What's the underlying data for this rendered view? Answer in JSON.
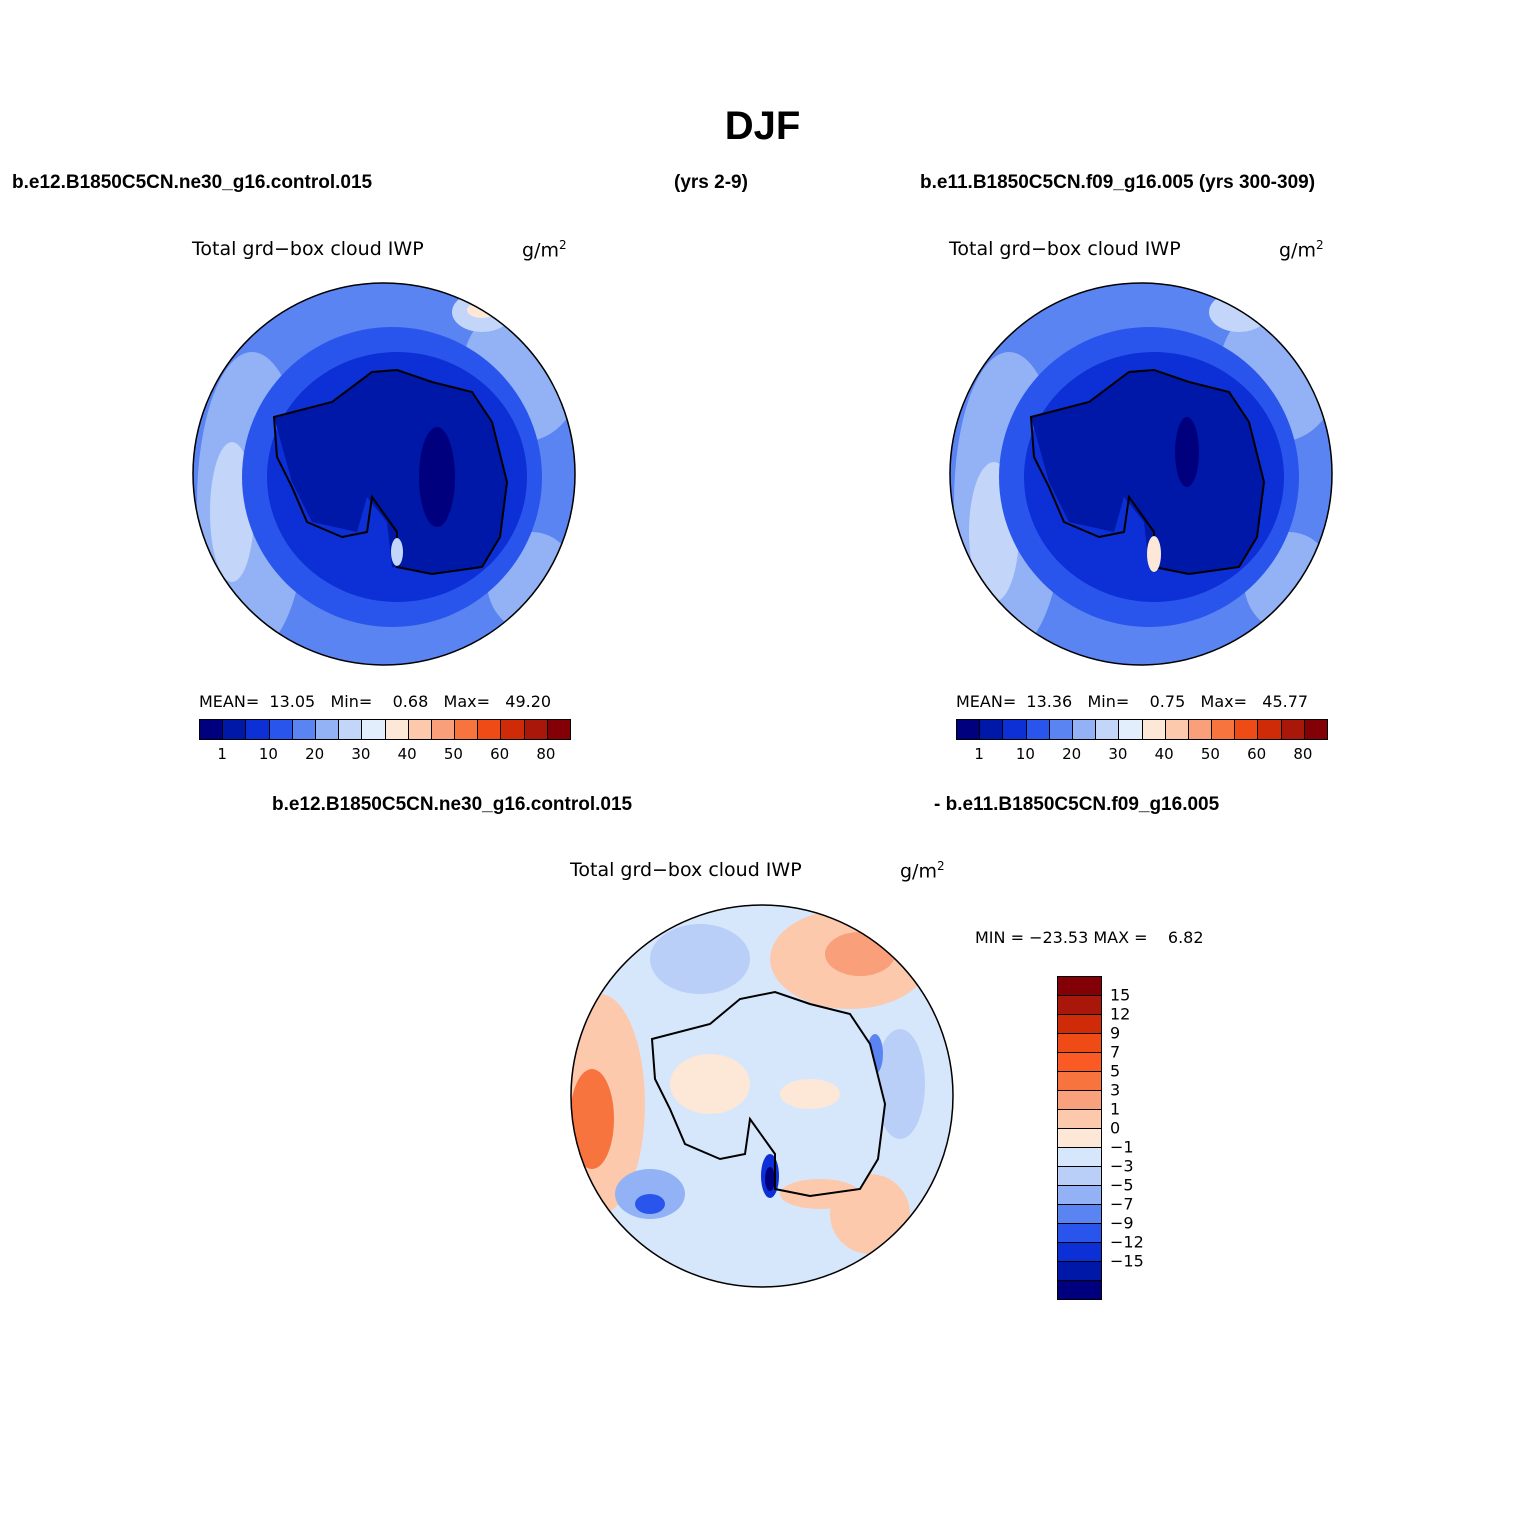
{
  "title": "DJF",
  "header": {
    "left_case": "b.e12.B1850C5CN.ne30_g16.control.015",
    "left_years": "(yrs 2-9)",
    "right_case": "b.e11.B1850C5CN.f09_g16.005 (yrs 300-309)"
  },
  "panels": [
    {
      "title": "Total grd−box cloud IWP",
      "units_base": "g/m",
      "units_exp": "2",
      "stats": {
        "mean_label": "MEAN=",
        "mean": "13.05",
        "min_label": "Min=",
        "min": "0.68",
        "max_label": "Max=",
        "max": "49.20"
      }
    },
    {
      "title": "Total grd−box cloud IWP",
      "units_base": "g/m",
      "units_exp": "2",
      "stats": {
        "mean_label": "MEAN=",
        "mean": "13.36",
        "min_label": "Min=",
        "min": "0.75",
        "max_label": "Max=",
        "max": "45.77"
      }
    }
  ],
  "colorbar": {
    "colors": [
      "#00007f",
      "#0018a8",
      "#0c2fd6",
      "#2a55ec",
      "#5a84f2",
      "#93b2f6",
      "#c3d6f9",
      "#e2eefc",
      "#fde7d6",
      "#fcc9ad",
      "#f99f7a",
      "#f7743e",
      "#ef4b16",
      "#d02b08",
      "#a9160a",
      "#820006"
    ],
    "labels": [
      "1",
      "10",
      "20",
      "30",
      "40",
      "50",
      "60",
      "80"
    ]
  },
  "diff": {
    "case_a": "b.e12.B1850C5CN.ne30_g16.control.015",
    "case_b": "- b.e11.B1850C5CN.f09_g16.005",
    "title": "Total grd−box cloud IWP",
    "units_base": "g/m",
    "units_exp": "2",
    "minmax": "MIN = −23.53 MAX =    6.82",
    "colorbar": {
      "colors_top_down": [
        "#820006",
        "#a9160a",
        "#d02b08",
        "#ef4b16",
        "#fb5a24",
        "#f7743e",
        "#f9a07c",
        "#fcc9ad",
        "#fde7d6",
        "#d7e7fb",
        "#b9cff8",
        "#93b2f6",
        "#5a84f2",
        "#2a55ec",
        "#0c2fd6",
        "#0018a8",
        "#00007f"
      ],
      "labels": [
        "15",
        "12",
        "9",
        "7",
        "5",
        "3",
        "1",
        "0",
        "−1",
        "−3",
        "−5",
        "−7",
        "−9",
        "−12",
        "−15"
      ]
    }
  }
}
